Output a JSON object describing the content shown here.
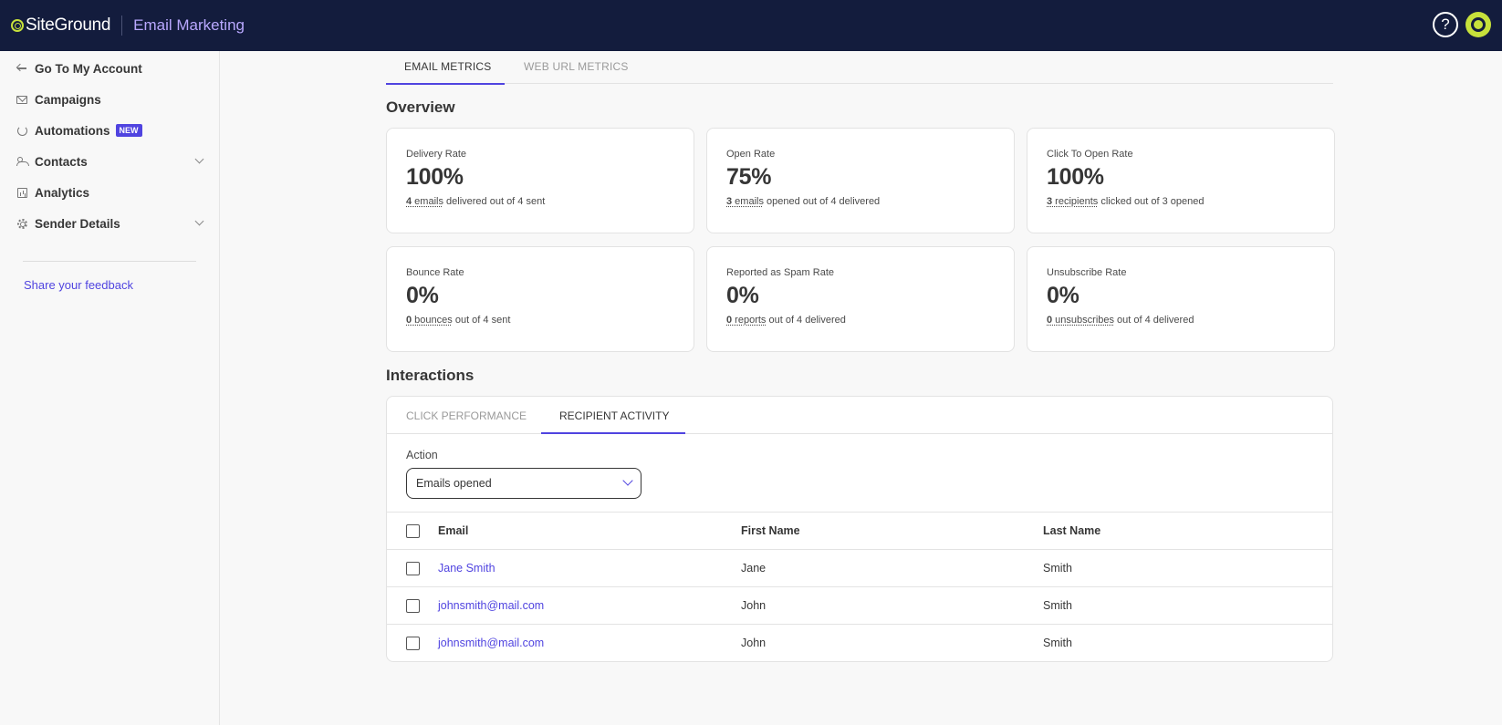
{
  "header": {
    "brand": "SiteGround",
    "app_name": "Email Marketing",
    "help_glyph": "?"
  },
  "sidebar": {
    "items": [
      {
        "label": "Go To My Account",
        "icon": "arrow-left-icon"
      },
      {
        "label": "Campaigns",
        "icon": "envelope-icon"
      },
      {
        "label": "Automations",
        "icon": "refresh-icon",
        "badge": "NEW"
      },
      {
        "label": "Contacts",
        "icon": "users-icon",
        "expandable": true
      },
      {
        "label": "Analytics",
        "icon": "chart-icon"
      },
      {
        "label": "Sender Details",
        "icon": "gear-icon",
        "expandable": true
      }
    ],
    "feedback": "Share your feedback"
  },
  "metric_tabs": {
    "active": "EMAIL METRICS",
    "inactive": "WEB URL METRICS"
  },
  "overview": {
    "title": "Overview",
    "cards": [
      {
        "label": "Delivery Rate",
        "value": "100%",
        "count": "4",
        "unit": " emails",
        "rest": " delivered out of 4 sent"
      },
      {
        "label": "Open Rate",
        "value": "75%",
        "count": "3",
        "unit": " emails",
        "rest": " opened out of 4 delivered"
      },
      {
        "label": "Click To Open Rate",
        "value": "100%",
        "count": "3",
        "unit": " recipients",
        "rest": " clicked out of 3 opened"
      },
      {
        "label": "Bounce Rate",
        "value": "0%",
        "count": "0",
        "unit": " bounces",
        "rest": " out of 4 sent"
      },
      {
        "label": "Reported as Spam Rate",
        "value": "0%",
        "count": "0",
        "unit": " reports",
        "rest": " out of 4 delivered"
      },
      {
        "label": "Unsubscribe Rate",
        "value": "0%",
        "count": "0",
        "unit": " unsubscribes",
        "rest": " out of 4 delivered"
      }
    ]
  },
  "interactions": {
    "title": "Interactions",
    "tabs": {
      "inactive": "CLICK PERFORMANCE",
      "active": "RECIPIENT ACTIVITY"
    },
    "action_label": "Action",
    "action_value": "Emails opened",
    "table": {
      "headers": {
        "email": "Email",
        "first": "First Name",
        "last": "Last Name"
      },
      "rows": [
        {
          "email": "Jane Smith",
          "first": "Jane",
          "last": "Smith"
        },
        {
          "email": "johnsmith@mail.com",
          "first": "John",
          "last": "Smith"
        },
        {
          "email": "johnsmith@mail.com",
          "first": "John",
          "last": "Smith"
        }
      ]
    }
  }
}
